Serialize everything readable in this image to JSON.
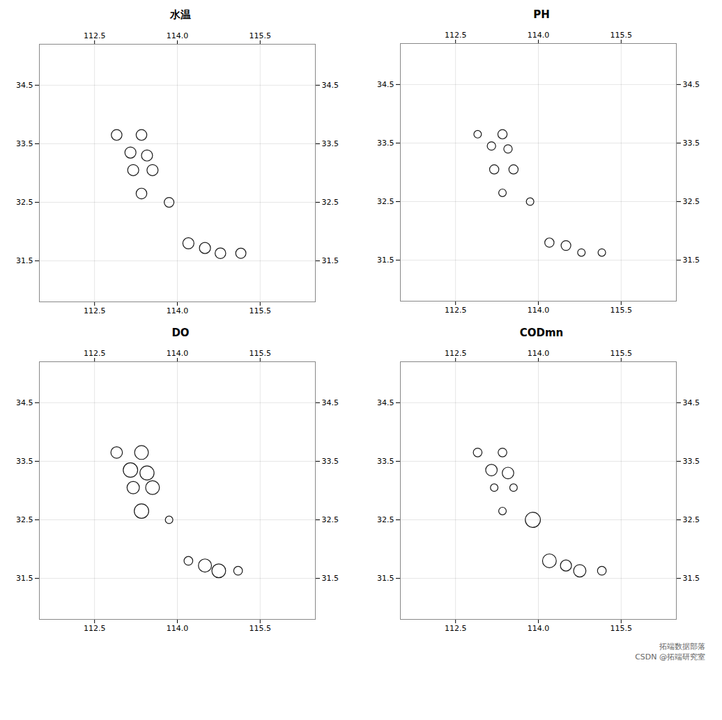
{
  "chart_data": [
    {
      "type": "scatter",
      "title": "水温",
      "x": [
        112.9,
        113.35,
        113.15,
        113.45,
        113.2,
        113.55,
        113.35,
        113.85,
        114.2,
        114.5,
        114.78,
        115.15
      ],
      "values": [
        33.65,
        33.65,
        33.35,
        33.3,
        33.05,
        33.05,
        32.65,
        32.5,
        31.8,
        31.72,
        31.63,
        31.63
      ],
      "sizes": [
        120,
        120,
        130,
        130,
        130,
        130,
        120,
        100,
        130,
        130,
        120,
        110
      ],
      "color": "#1A1A1A",
      "xlim": [
        111.5,
        116.5
      ],
      "ylim": [
        30.8,
        35.2
      ],
      "xticks": [
        112.5,
        {
          "value": 114,
          "label": "114.0"
        },
        115.5
      ],
      "yticks": [
        31.5,
        32.5,
        33.5,
        34.5
      ],
      "grid": true
    },
    {
      "type": "scatter",
      "title": "PH",
      "x": [
        112.9,
        113.35,
        113.15,
        113.45,
        113.2,
        113.55,
        113.35,
        113.85,
        114.2,
        114.5,
        114.78,
        115.15
      ],
      "values": [
        33.65,
        33.65,
        33.45,
        33.4,
        33.05,
        33.05,
        32.65,
        32.5,
        31.8,
        31.75,
        31.63,
        31.63
      ],
      "sizes": [
        60,
        90,
        75,
        75,
        90,
        90,
        60,
        60,
        90,
        100,
        60,
        60
      ],
      "color": "#1A1A1A",
      "xlim": [
        111.5,
        116.5
      ],
      "ylim": [
        30.8,
        35.2
      ],
      "xticks": [
        112.5,
        {
          "value": 114,
          "label": "114.0"
        },
        115.5
      ],
      "yticks": [
        31.5,
        32.5,
        33.5,
        34.5
      ],
      "grid": true
    },
    {
      "type": "scatter",
      "title": "DO",
      "x": [
        112.9,
        113.35,
        113.15,
        113.45,
        113.2,
        113.55,
        113.35,
        113.85,
        114.2,
        114.5,
        114.75,
        115.1
      ],
      "values": [
        33.65,
        33.65,
        33.35,
        33.3,
        33.05,
        33.05,
        32.65,
        32.5,
        31.8,
        31.72,
        31.63,
        31.63
      ],
      "sizes": [
        140,
        200,
        220,
        210,
        160,
        200,
        220,
        60,
        80,
        180,
        200,
        80
      ],
      "color": "#1A1A1A",
      "xlim": [
        111.5,
        116.5
      ],
      "ylim": [
        30.8,
        35.2
      ],
      "xticks": [
        112.5,
        {
          "value": 114,
          "label": "114.0"
        },
        115.5
      ],
      "yticks": [
        31.5,
        32.5,
        33.5,
        34.5
      ],
      "grid": true
    },
    {
      "type": "scatter",
      "title": "CODmn",
      "x": [
        112.9,
        113.35,
        113.15,
        113.45,
        113.2,
        113.55,
        113.35,
        113.9,
        114.2,
        114.5,
        114.75,
        115.15
      ],
      "values": [
        33.65,
        33.65,
        33.35,
        33.3,
        33.05,
        33.05,
        32.65,
        32.5,
        31.8,
        31.72,
        31.63,
        31.63
      ],
      "sizes": [
        80,
        80,
        140,
        140,
        60,
        60,
        60,
        240,
        200,
        130,
        160,
        80
      ],
      "color": "#1A1A1A",
      "xlim": [
        111.5,
        116.5
      ],
      "ylim": [
        30.8,
        35.2
      ],
      "xticks": [
        112.5,
        {
          "value": 114,
          "label": "114.0"
        },
        115.5
      ],
      "yticks": [
        31.5,
        32.5,
        33.5,
        34.5
      ],
      "grid": true,
      "annotations": [
        "拓端数据部落",
        "CSDN @拓端研究室"
      ]
    }
  ]
}
